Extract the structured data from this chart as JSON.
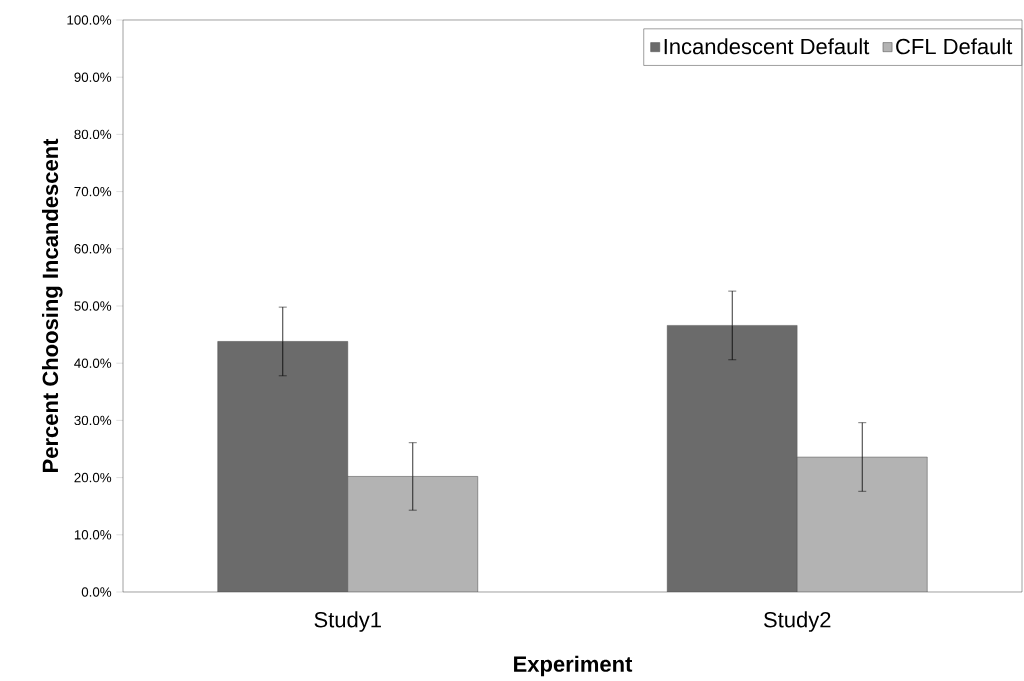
{
  "chart_data": {
    "type": "bar",
    "xlabel": "Experiment",
    "ylabel": "Percent Choosing Incandescent",
    "categories": [
      "Study1",
      "Study2"
    ],
    "series": [
      {
        "name": "Incandescent Default",
        "color": "#6b6b6b",
        "values": [
          43.8,
          46.6
        ],
        "errors": [
          6,
          6
        ]
      },
      {
        "name": "CFL Default",
        "color": "#b3b3b3",
        "values": [
          20.2,
          23.6
        ],
        "errors": [
          5.9,
          6
        ]
      }
    ],
    "ylim": [
      0,
      100
    ],
    "yticks": [
      {
        "value": 0,
        "label": "0.0%"
      },
      {
        "value": 10,
        "label": "10.0%"
      },
      {
        "value": 20,
        "label": "20.0%"
      },
      {
        "value": 30,
        "label": "30.0%"
      },
      {
        "value": 40,
        "label": "40.0%"
      },
      {
        "value": 50,
        "label": "50.0%"
      },
      {
        "value": 60,
        "label": "60.0%"
      },
      {
        "value": 70,
        "label": "70.0%"
      },
      {
        "value": 80,
        "label": "80.0%"
      },
      {
        "value": 90,
        "label": "90.0%"
      },
      {
        "value": 100,
        "label": "100.0%"
      }
    ],
    "grid": false,
    "legend": "top right"
  }
}
